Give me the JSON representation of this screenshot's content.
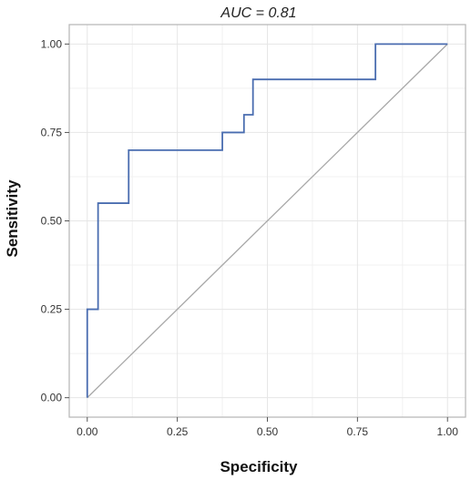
{
  "chart_data": {
    "type": "line",
    "title": "AUC = 0.81",
    "xlabel": "Specificity",
    "ylabel": "Sensitivity",
    "xlim": [
      -0.05,
      1.05
    ],
    "ylim": [
      -0.055,
      1.055
    ],
    "x_ticks": [
      "0.00",
      "0.25",
      "0.50",
      "0.75",
      "1.00"
    ],
    "y_ticks": [
      "0.00",
      "0.25",
      "0.50",
      "0.75",
      "1.00"
    ],
    "grid": true,
    "legend": "none",
    "series": [
      {
        "color": "#4a6db0",
        "step": true,
        "points": [
          [
            0.0,
            0.0
          ],
          [
            0.0,
            0.25
          ],
          [
            0.03,
            0.25
          ],
          [
            0.03,
            0.55
          ],
          [
            0.115,
            0.55
          ],
          [
            0.115,
            0.7
          ],
          [
            0.375,
            0.7
          ],
          [
            0.375,
            0.75
          ],
          [
            0.435,
            0.75
          ],
          [
            0.435,
            0.8
          ],
          [
            0.46,
            0.8
          ],
          [
            0.46,
            0.9
          ],
          [
            0.8,
            0.9
          ],
          [
            0.8,
            1.0
          ],
          [
            1.0,
            1.0
          ]
        ]
      }
    ],
    "reference_line": {
      "color": "#a8a8a8",
      "points": [
        [
          0.0,
          0.0
        ],
        [
          1.0,
          1.0
        ]
      ]
    }
  }
}
